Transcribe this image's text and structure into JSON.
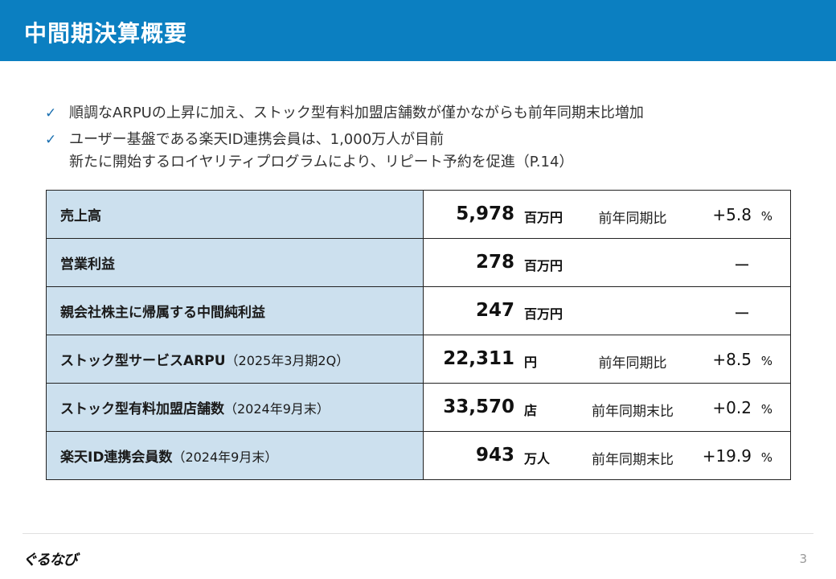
{
  "header": {
    "title": "中間期決算概要"
  },
  "bullets": [
    {
      "lines": [
        "順調なARPUの上昇に加え、ストック型有料加盟店舗数が僅かながらも前年同期末比増加"
      ]
    },
    {
      "lines": [
        "ユーザー基盤である楽天ID連携会員は、1,000万人が目前",
        "新たに開始するロイヤリティプログラムにより、リピート予約を促進（P.14）"
      ]
    }
  ],
  "table": {
    "rows": [
      {
        "label": "売上高",
        "note": "",
        "value": "5,978",
        "unit": "百万円",
        "compare_label": "前年同期比",
        "compare_value": "+5.8",
        "pct": "%",
        "dash": ""
      },
      {
        "label": "営業利益",
        "note": "",
        "value": "278",
        "unit": "百万円",
        "compare_label": "",
        "compare_value": "",
        "pct": "",
        "dash": "ー"
      },
      {
        "label": "親会社株主に帰属する中間純利益",
        "note": "",
        "value": "247",
        "unit": "百万円",
        "compare_label": "",
        "compare_value": "",
        "pct": "",
        "dash": "ー"
      },
      {
        "label": "ストック型サービスARPU",
        "note": "（2025年3月期2Q）",
        "value": "22,311",
        "unit": "円",
        "compare_label": "前年同期比",
        "compare_value": "+8.5",
        "pct": "%",
        "dash": ""
      },
      {
        "label": "ストック型有料加盟店舗数",
        "note": "（2024年9月末）",
        "value": "33,570",
        "unit": "店",
        "compare_label": "前年同期末比",
        "compare_value": "+0.2",
        "pct": "%",
        "dash": ""
      },
      {
        "label": "楽天ID連携会員数",
        "note": "（2024年9月末）",
        "value": "943",
        "unit": "万人",
        "compare_label": "前年同期末比",
        "compare_value": "+19.9",
        "pct": "%",
        "dash": ""
      }
    ]
  },
  "footer": {
    "logo": "ぐるなび",
    "page": "3"
  },
  "icons": {
    "bullet": "check-icon"
  },
  "colors": {
    "header_bg": "#0b7fc1",
    "label_bg": "#cce0ee"
  }
}
